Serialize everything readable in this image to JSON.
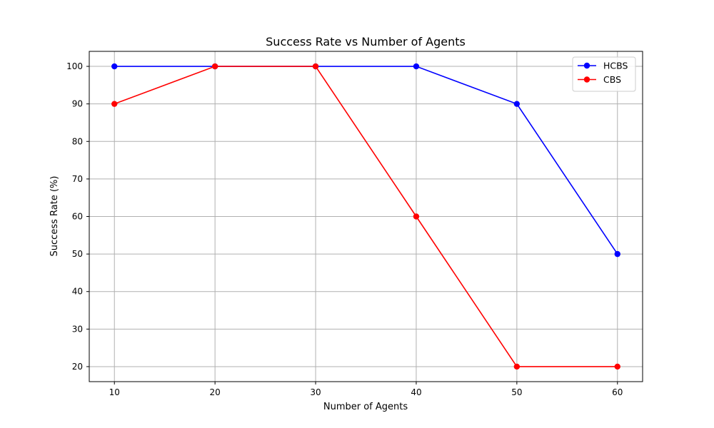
{
  "chart_data": {
    "type": "line",
    "title": "Success Rate vs Number of Agents",
    "xlabel": "Number of Agents",
    "ylabel": "Success Rate (%)",
    "x": [
      10,
      20,
      30,
      40,
      50,
      60
    ],
    "xlim": [
      7.5,
      62.5
    ],
    "ylim": [
      16,
      104
    ],
    "xticks": [
      10,
      20,
      30,
      40,
      50,
      60
    ],
    "yticks": [
      20,
      30,
      40,
      50,
      60,
      70,
      80,
      90,
      100
    ],
    "grid": true,
    "legend_position": "top-right",
    "series": [
      {
        "name": "HCBS",
        "color": "#0000ff",
        "values": [
          100,
          100,
          100,
          100,
          90,
          50
        ]
      },
      {
        "name": "CBS",
        "color": "#ff0000",
        "values": [
          90,
          100,
          100,
          60,
          20,
          20
        ]
      }
    ]
  }
}
